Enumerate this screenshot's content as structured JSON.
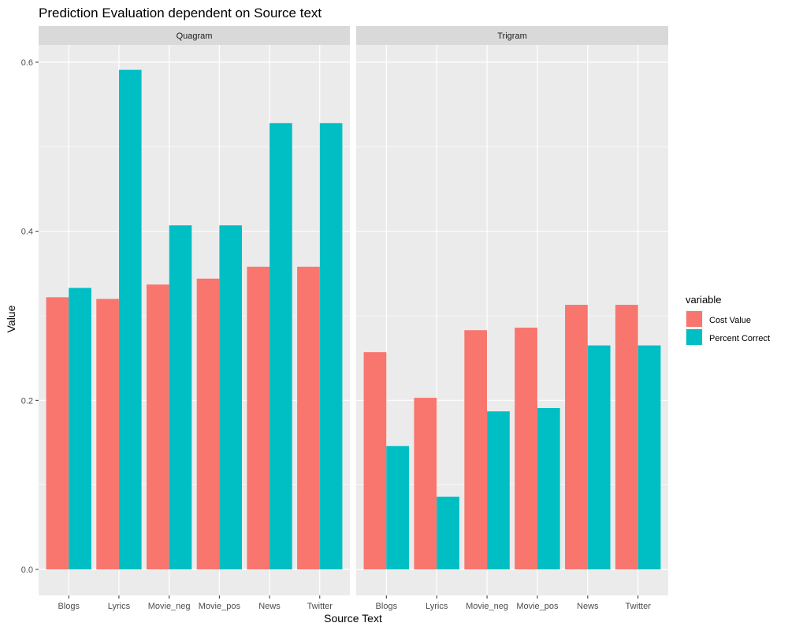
{
  "chart_data": {
    "type": "bar",
    "title": "Prediction Evaluation dependent on Source text",
    "xlabel": "Source Text",
    "ylabel": "Value",
    "ylim": [
      0,
      0.6
    ],
    "yticks": [
      "0.0",
      "0.2",
      "0.4",
      "0.6"
    ],
    "categories": [
      "Blogs",
      "Lyrics",
      "Movie_neg",
      "Movie_pos",
      "News",
      "Twitter"
    ],
    "grid": true,
    "legend": {
      "title": "variable",
      "position": "right",
      "entries": [
        "Cost Value",
        "Percent Correct"
      ]
    },
    "series_colors": {
      "Cost Value": "#F8766D",
      "Percent Correct": "#00BFC4"
    },
    "facets": [
      {
        "label": "Quagram",
        "series": [
          {
            "name": "Cost Value",
            "values": [
              0.322,
              0.32,
              0.337,
              0.344,
              0.358,
              0.358
            ]
          },
          {
            "name": "Percent Correct",
            "values": [
              0.333,
              0.591,
              0.407,
              0.407,
              0.528,
              0.528
            ]
          }
        ]
      },
      {
        "label": "Trigram",
        "series": [
          {
            "name": "Cost Value",
            "values": [
              0.257,
              0.203,
              0.283,
              0.286,
              0.313,
              0.313
            ]
          },
          {
            "name": "Percent Correct",
            "values": [
              0.146,
              0.086,
              0.187,
              0.191,
              0.265,
              0.265
            ]
          }
        ]
      }
    ]
  }
}
